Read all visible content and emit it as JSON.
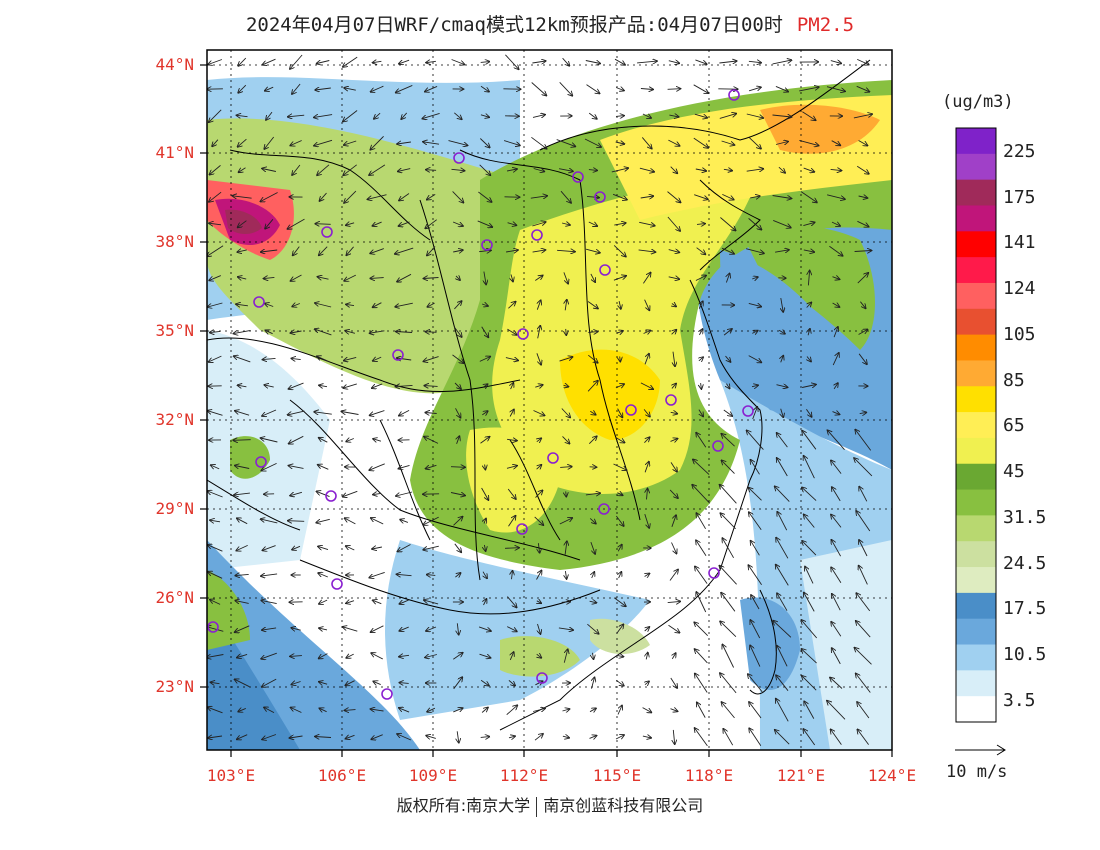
{
  "title": {
    "text": "2024年04月07日WRF/cmaq模式12km预报产品:04月07日00时",
    "pollutant": "PM2.5"
  },
  "lat_labels": [
    "44°N",
    "41°N",
    "38°N",
    "35°N",
    "32°N",
    "29°N",
    "26°N",
    "23°N"
  ],
  "lon_labels": [
    "103°E",
    "106°E",
    "109°E",
    "112°E",
    "115°E",
    "118°E",
    "121°E",
    "124°E"
  ],
  "colorbar": {
    "unit": "(ug/m3)",
    "labels": [
      "225",
      "175",
      "141",
      "124",
      "105",
      "85",
      "65",
      "45",
      "31.5",
      "24.5",
      "17.5",
      "10.5",
      "3.5"
    ],
    "colors_top_to_bottom": [
      "#7f22c9",
      "#a040c8",
      "#a02a5a",
      "#c0157a",
      "#ff0000",
      "#ff1a4a",
      "#ff6060",
      "#e85030",
      "#ff8c00",
      "#ffaa33",
      "#ffe000",
      "#ffee55",
      "#f0f050",
      "#6aa832",
      "#88c040",
      "#b8d870",
      "#cce0a0",
      "#deecc0",
      "#4a8ec8",
      "#6aa8dc",
      "#a0d0f0",
      "#d8eef8",
      "#ffffff"
    ]
  },
  "wind_legend": {
    "label": "10 m/s"
  },
  "stations": [
    "st1",
    "st2",
    "st3",
    "st4",
    "st5",
    "st6",
    "st7",
    "st8",
    "st9",
    "st10",
    "st11",
    "st12",
    "st13",
    "st14",
    "st15",
    "st16",
    "st17",
    "st18",
    "st19",
    "st20",
    "st21",
    "st22",
    "st23",
    "st24",
    "st25"
  ],
  "credit": {
    "left": "版权所有:南京大学",
    "right": "南京创蓝科技有限公司"
  }
}
